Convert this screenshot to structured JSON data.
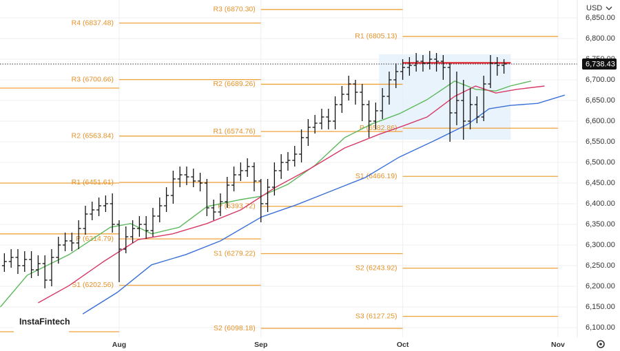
{
  "chart_data": {
    "type": "ohlc",
    "currency": "USD",
    "watermark": "InstaFintech",
    "xlim": [
      -17.65,
      67.86
    ],
    "ylim": [
      6076.67,
      6893.33
    ],
    "xticks": [
      {
        "value": 0,
        "label": "Aug"
      },
      {
        "value": 21,
        "label": "Sep"
      },
      {
        "value": 42,
        "label": "Oct"
      },
      {
        "value": 65,
        "label": "Nov"
      }
    ],
    "yticks": [
      {
        "value": 6100,
        "label": "6,100.00"
      },
      {
        "value": 6150,
        "label": "6,150.00"
      },
      {
        "value": 6200,
        "label": "6,200.00"
      },
      {
        "value": 6250,
        "label": "6,250.00"
      },
      {
        "value": 6300,
        "label": "6,300.00"
      },
      {
        "value": 6350,
        "label": "6,350.00"
      },
      {
        "value": 6400,
        "label": "6,400.00"
      },
      {
        "value": 6450,
        "label": "6,450.00"
      },
      {
        "value": 6500,
        "label": "6,500.00"
      },
      {
        "value": 6550,
        "label": "6,550.00"
      },
      {
        "value": 6600,
        "label": "6,600.00"
      },
      {
        "value": 6650,
        "label": "6,650.00"
      },
      {
        "value": 6700,
        "label": "6,700.00"
      },
      {
        "value": 6750,
        "label": "6,750.00"
      },
      {
        "value": 6800,
        "label": "6,800.00"
      },
      {
        "value": 6850,
        "label": "6,850.00"
      }
    ],
    "grid": true,
    "bar_color": "#111111",
    "x": [
      -17,
      -16,
      -15,
      -14,
      -13,
      -12,
      -11,
      -10,
      -9,
      -8,
      -7,
      -6,
      -5,
      -4,
      -3,
      -2,
      -1,
      0,
      1,
      2,
      3,
      4,
      5,
      6,
      7,
      8,
      9,
      10,
      11,
      12,
      13,
      14,
      15,
      16,
      17,
      18,
      19,
      20,
      21,
      22,
      23,
      24,
      25,
      26,
      27,
      28,
      29,
      30,
      31,
      32,
      33,
      34,
      35,
      36,
      37,
      38,
      39,
      40,
      41,
      42,
      43,
      44,
      45,
      46,
      47,
      48,
      49,
      50,
      51,
      52,
      53,
      54,
      55,
      56,
      57
    ],
    "open": [
      6250,
      6260,
      6270,
      6250,
      6265,
      6240,
      6255,
      6215,
      6270,
      6300,
      6310,
      6305,
      6340,
      6375,
      6385,
      6395,
      6400,
      6350,
      6290,
      6320,
      6340,
      6350,
      6335,
      6370,
      6395,
      6420,
      6460,
      6470,
      6465,
      6455,
      6450,
      6390,
      6380,
      6405,
      6445,
      6470,
      6480,
      6490,
      6455,
      6400,
      6440,
      6480,
      6500,
      6505,
      6520,
      6560,
      6585,
      6595,
      6610,
      6600,
      6640,
      6665,
      6690,
      6670,
      6640,
      6600,
      6625,
      6660,
      6700,
      6720,
      6730,
      6735,
      6745,
      6740,
      6750,
      6745,
      6730,
      6620,
      6650,
      6600,
      6640,
      6610,
      6690,
      6740,
      6735
    ],
    "high": [
      6280,
      6290,
      6290,
      6285,
      6285,
      6275,
      6275,
      6290,
      6320,
      6330,
      6330,
      6360,
      6395,
      6405,
      6415,
      6420,
      6425,
      6360,
      6345,
      6360,
      6370,
      6370,
      6390,
      6415,
      6440,
      6480,
      6490,
      6490,
      6485,
      6475,
      6460,
      6410,
      6425,
      6465,
      6490,
      6500,
      6510,
      6500,
      6460,
      6460,
      6500,
      6520,
      6525,
      6540,
      6580,
      6605,
      6615,
      6630,
      6630,
      6660,
      6685,
      6710,
      6700,
      6690,
      6650,
      6645,
      6680,
      6720,
      6740,
      6750,
      6755,
      6765,
      6760,
      6770,
      6765,
      6760,
      6740,
      6720,
      6700,
      6680,
      6660,
      6710,
      6760,
      6755,
      6750
    ],
    "low": [
      6235,
      6245,
      6230,
      6235,
      6220,
      6225,
      6195,
      6200,
      6255,
      6285,
      6285,
      6290,
      6325,
      6360,
      6370,
      6380,
      6330,
      6210,
      6280,
      6305,
      6320,
      6315,
      6320,
      6355,
      6380,
      6400,
      6440,
      6445,
      6440,
      6430,
      6370,
      6360,
      6370,
      6390,
      6430,
      6455,
      6465,
      6430,
      6355,
      6380,
      6420,
      6460,
      6480,
      6490,
      6500,
      6540,
      6570,
      6580,
      6580,
      6580,
      6620,
      6650,
      6640,
      6600,
      6560,
      6580,
      6605,
      6640,
      6680,
      6700,
      6710,
      6720,
      6720,
      6725,
      6720,
      6700,
      6550,
      6590,
      6555,
      6580,
      6595,
      6600,
      6680,
      6710,
      6715
    ],
    "close": [
      6260,
      6270,
      6250,
      6265,
      6240,
      6255,
      6215,
      6270,
      6300,
      6310,
      6305,
      6340,
      6375,
      6385,
      6395,
      6400,
      6350,
      6290,
      6320,
      6340,
      6350,
      6335,
      6370,
      6395,
      6420,
      6460,
      6470,
      6465,
      6455,
      6450,
      6390,
      6380,
      6405,
      6445,
      6470,
      6480,
      6490,
      6455,
      6400,
      6440,
      6480,
      6500,
      6505,
      6520,
      6560,
      6585,
      6595,
      6610,
      6600,
      6640,
      6665,
      6690,
      6670,
      6640,
      6600,
      6625,
      6660,
      6700,
      6720,
      6730,
      6735,
      6745,
      6740,
      6750,
      6745,
      6730,
      6620,
      6650,
      6600,
      6640,
      6610,
      6690,
      6740,
      6735,
      6738.43
    ],
    "series": [
      {
        "color": "#5cb85c",
        "x": [
          -17.6,
          -13.6,
          -7.4,
          -1.3,
          1.7,
          4.8,
          8.9,
          13,
          18,
          21,
          25,
          29,
          33.4,
          37.4,
          41.5,
          45.6,
          49.7,
          52.8,
          55.8,
          57.9,
          61
        ],
        "values": [
          6150,
          6227,
          6277,
          6343,
          6352,
          6327,
          6343,
          6393,
          6410,
          6418,
          6447,
          6493,
          6560,
          6593,
          6618,
          6652,
          6697,
          6677,
          6673,
          6685,
          6697
        ]
      },
      {
        "color": "#d63864",
        "x": [
          -12,
          -7.4,
          -2.3,
          2.8,
          7.9,
          13,
          18,
          23.2,
          28.3,
          33.4,
          38.5,
          42,
          45.6,
          49.7,
          52.8,
          55.8,
          58.9,
          63
        ],
        "values": [
          6160,
          6202,
          6260,
          6313,
          6327,
          6352,
          6385,
          6440,
          6485,
          6535,
          6568,
          6588,
          6610,
          6660,
          6685,
          6668,
          6677,
          6685
        ]
      },
      {
        "color": "#3a6fd8",
        "x": [
          -5.4,
          -0.3,
          4.8,
          9.9,
          15,
          21.1,
          26.2,
          31.3,
          36.4,
          41.5,
          46.6,
          51.7,
          54.8,
          57.9,
          62,
          66
        ],
        "values": [
          6133,
          6185,
          6252,
          6277,
          6310,
          6368,
          6397,
          6430,
          6463,
          6513,
          6552,
          6593,
          6630,
          6638,
          6643,
          6663
        ]
      }
    ],
    "pivot_color": "#f0a23a",
    "pivots": [
      {
        "x": [
          -18,
          0
        ],
        "levels": [
          {
            "value": 6680
          },
          {
            "value": 6450
          },
          {
            "value": 6327
          },
          {
            "value": 6090
          }
        ]
      },
      {
        "x": [
          0,
          21
        ],
        "levels": [
          {
            "label": "R4 (6837.48)",
            "value": 6837.48
          },
          {
            "label": "R3 (6700.66)",
            "value": 6700.66
          },
          {
            "label": "R2 (6563.84)",
            "value": 6563.84
          },
          {
            "label": "R1 (6451.61)",
            "value": 6451.61
          },
          {
            "label": "P (6314.79)",
            "value": 6314.79
          },
          {
            "label": "S1 (6202.56)",
            "value": 6202.56
          }
        ]
      },
      {
        "x": [
          21,
          42
        ],
        "levels": [
          {
            "label": "R3 (6870.30)",
            "value": 6870.3
          },
          {
            "label": "R2 (6689.26)",
            "value": 6689.26
          },
          {
            "label": "R1 (6574.76)",
            "value": 6574.76
          },
          {
            "label": "P (6393.72)",
            "value": 6393.72
          },
          {
            "label": "S1 (6279.22)",
            "value": 6279.22
          },
          {
            "label": "S2 (6098.18)",
            "value": 6098.18
          }
        ]
      },
      {
        "x": [
          42,
          65
        ],
        "levels": [
          {
            "label": "R1 (6805.13)",
            "value": 6805.13
          },
          {
            "label": "P (6582.86)",
            "value": 6582.86
          },
          {
            "label": "S1 (6466.19)",
            "value": 6466.19
          },
          {
            "label": "S2 (6243.92)",
            "value": 6243.92
          },
          {
            "label": "S3 (6127.25)",
            "value": 6127.25
          }
        ]
      }
    ],
    "profile_box": {
      "x": [
        38.5,
        58
      ],
      "y": [
        6555,
        6762
      ]
    },
    "poc": {
      "x": [
        42,
        58
      ],
      "value": 6741
    },
    "last_price": {
      "value": 6738.43,
      "label": "6,738.43"
    }
  }
}
